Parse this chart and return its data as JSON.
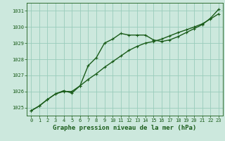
{
  "title": "Graphe pression niveau de la mer (hPa)",
  "bg_color": "#cce8dd",
  "grid_color": "#99ccbb",
  "line_color": "#1a5c1a",
  "tick_color": "#1a5c1a",
  "ylabel_ticks": [
    1025,
    1026,
    1027,
    1028,
    1029,
    1030,
    1031
  ],
  "ylim": [
    1024.5,
    1031.5
  ],
  "xlim": [
    -0.5,
    23.5
  ],
  "xticks": [
    0,
    1,
    2,
    3,
    4,
    5,
    6,
    7,
    8,
    9,
    10,
    11,
    12,
    13,
    14,
    15,
    16,
    17,
    18,
    19,
    20,
    21,
    22,
    23
  ],
  "series1_x": [
    0,
    1,
    2,
    3,
    4,
    5,
    6,
    7,
    8,
    9,
    10,
    11,
    12,
    13,
    14,
    15,
    16,
    17,
    18,
    19,
    20,
    21,
    22,
    23
  ],
  "series1_y": [
    1024.8,
    1025.1,
    1025.5,
    1025.85,
    1026.0,
    1026.0,
    1026.35,
    1026.75,
    1027.1,
    1027.5,
    1027.85,
    1028.2,
    1028.55,
    1028.8,
    1029.0,
    1029.1,
    1029.25,
    1029.45,
    1029.65,
    1029.82,
    1030.0,
    1030.2,
    1030.5,
    1030.82
  ],
  "series2_x": [
    0,
    1,
    2,
    3,
    4,
    5,
    6,
    7,
    8,
    9,
    10,
    11,
    12,
    13,
    14,
    15,
    16,
    17,
    18,
    19,
    20,
    21,
    22,
    23
  ],
  "series2_y": [
    1024.8,
    1025.1,
    1025.5,
    1025.85,
    1026.05,
    1025.9,
    1026.35,
    1027.6,
    1028.1,
    1029.0,
    1029.25,
    1029.6,
    1029.5,
    1029.5,
    1029.5,
    1029.2,
    1029.1,
    1029.2,
    1029.4,
    1029.65,
    1029.9,
    1030.15,
    1030.55,
    1031.1
  ],
  "title_fontsize": 6.5,
  "tick_fontsize": 5.0
}
